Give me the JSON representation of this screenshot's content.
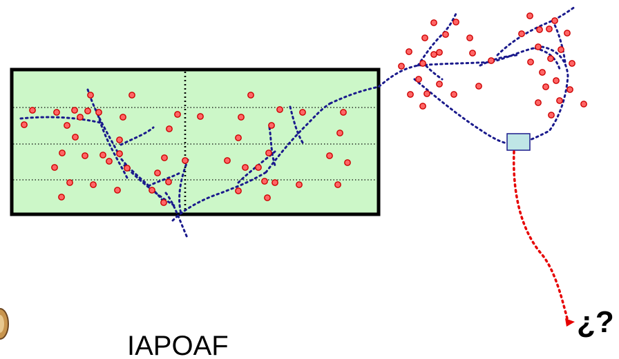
{
  "labels": {
    "question": "¿?",
    "name": "IAPOAF"
  },
  "colors": {
    "field_fill": "#ccf7c8",
    "field_border": "#000000",
    "dot_fill": "#ff6666",
    "dot_stroke": "#cc0000",
    "blue_path": "#1a1a8c",
    "red_path": "#e60000",
    "device_fill": "#bfe6e6",
    "emblem": "#b07a3a"
  }
}
